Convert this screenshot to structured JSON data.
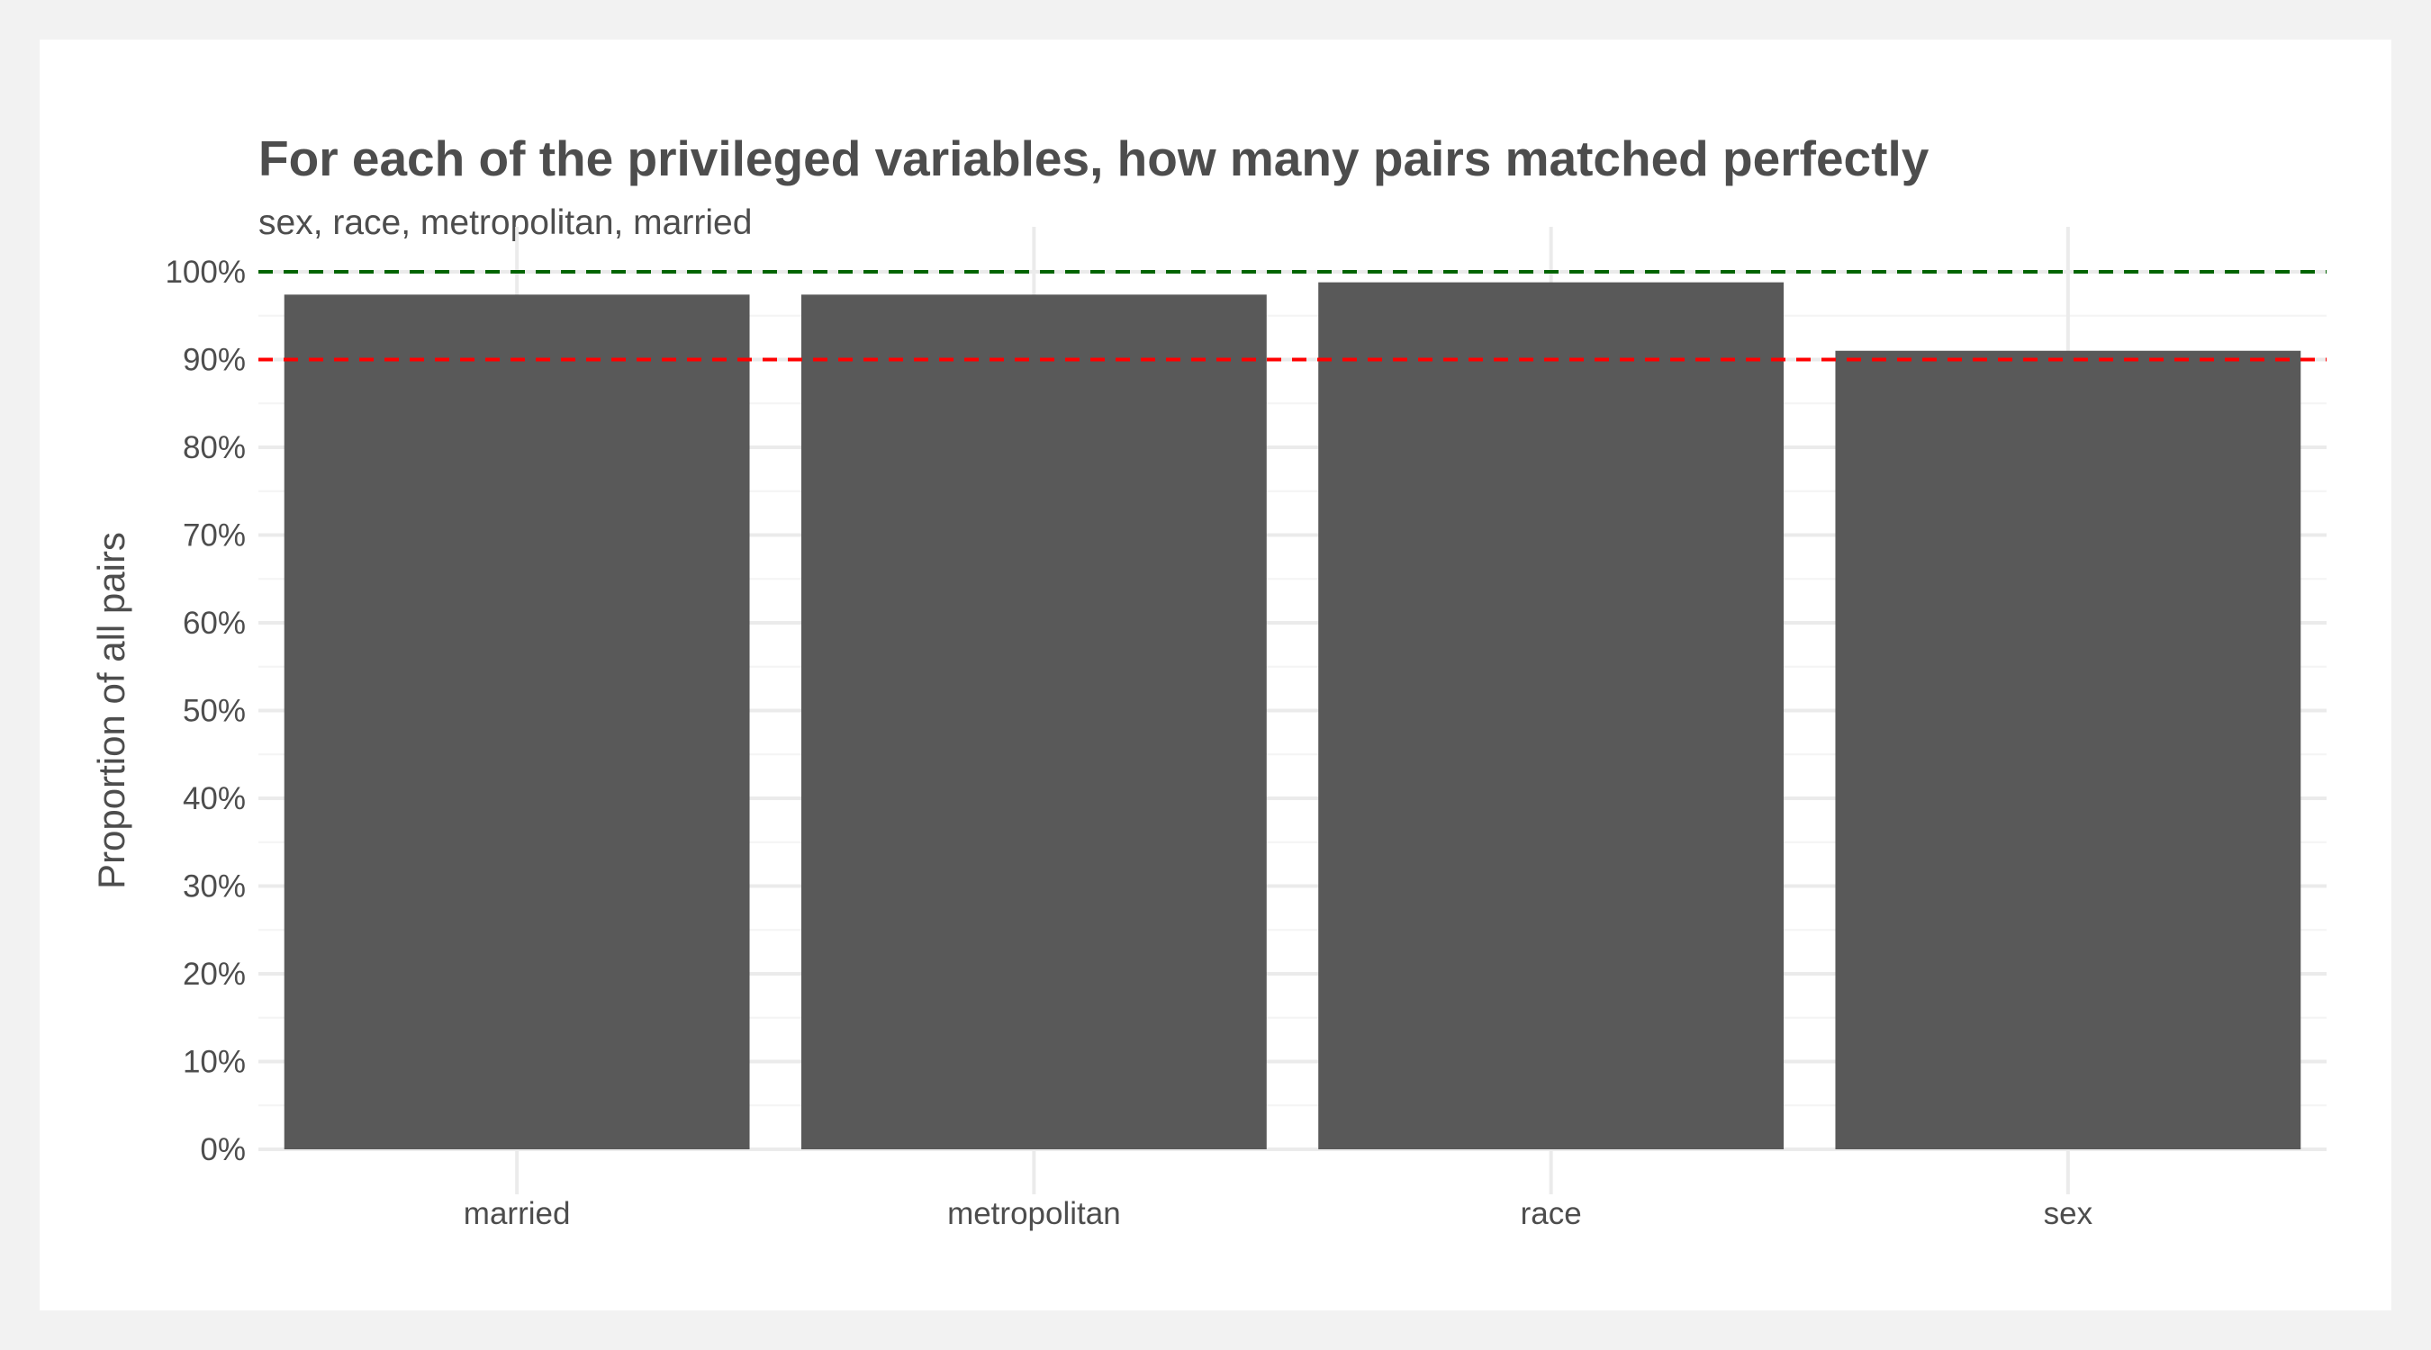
{
  "chart_data": {
    "type": "bar",
    "title": "For each of the privileged variables, how many pairs matched perfectly",
    "subtitle": "sex, race, metropolitan, married",
    "xlabel": "",
    "ylabel": "Proportion of all pairs",
    "categories": [
      "married",
      "metropolitan",
      "race",
      "sex"
    ],
    "values": [
      0.974,
      0.974,
      0.988,
      0.91
    ],
    "ylim": [
      0,
      1
    ],
    "yticks": [
      0,
      0.1,
      0.2,
      0.3,
      0.4,
      0.5,
      0.6,
      0.7,
      0.8,
      0.9,
      1.0
    ],
    "ytick_labels": [
      "0%",
      "10%",
      "20%",
      "30%",
      "40%",
      "50%",
      "60%",
      "70%",
      "80%",
      "90%",
      "100%"
    ],
    "reference_lines": [
      {
        "value": 1.0,
        "color": "#006400",
        "style": "dashed"
      },
      {
        "value": 0.9,
        "color": "#ff0000",
        "style": "dashed"
      }
    ],
    "bar_color": "#595959",
    "grid": true,
    "legend": "none"
  }
}
